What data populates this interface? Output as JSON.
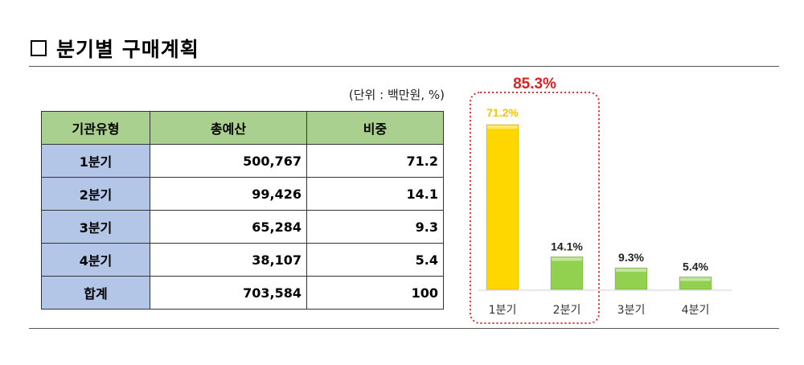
{
  "title": "분기별 구매계획",
  "unit_note": "(단위 : 백만원, %)",
  "table": {
    "headers": [
      "기관유형",
      "총예산",
      "비중"
    ],
    "rows": [
      {
        "label": "1분기",
        "budget": "500,767",
        "share": "71.2"
      },
      {
        "label": "2분기",
        "budget": "99,426",
        "share": "14.1"
      },
      {
        "label": "3분기",
        "budget": "65,284",
        "share": "9.3"
      },
      {
        "label": "4분기",
        "budget": "38,107",
        "share": "5.4"
      },
      {
        "label": "합계",
        "budget": "703,584",
        "share": "100"
      }
    ]
  },
  "chart_data": {
    "type": "bar",
    "categories": [
      "1분기",
      "2분기",
      "3분기",
      "4분기"
    ],
    "values": [
      71.2,
      14.1,
      9.3,
      5.4
    ],
    "data_labels": [
      "71.2%",
      "14.1%",
      "9.3%",
      "5.4%"
    ],
    "annotation": "85.3%",
    "highlighted_categories": [
      "1분기",
      "2분기"
    ],
    "colors": {
      "first_bar": "#ffd700",
      "other_bars": "#92d050",
      "highlight_box": "#e03030",
      "annotation_text": "#e02020",
      "first_label": "#f5c400"
    }
  }
}
